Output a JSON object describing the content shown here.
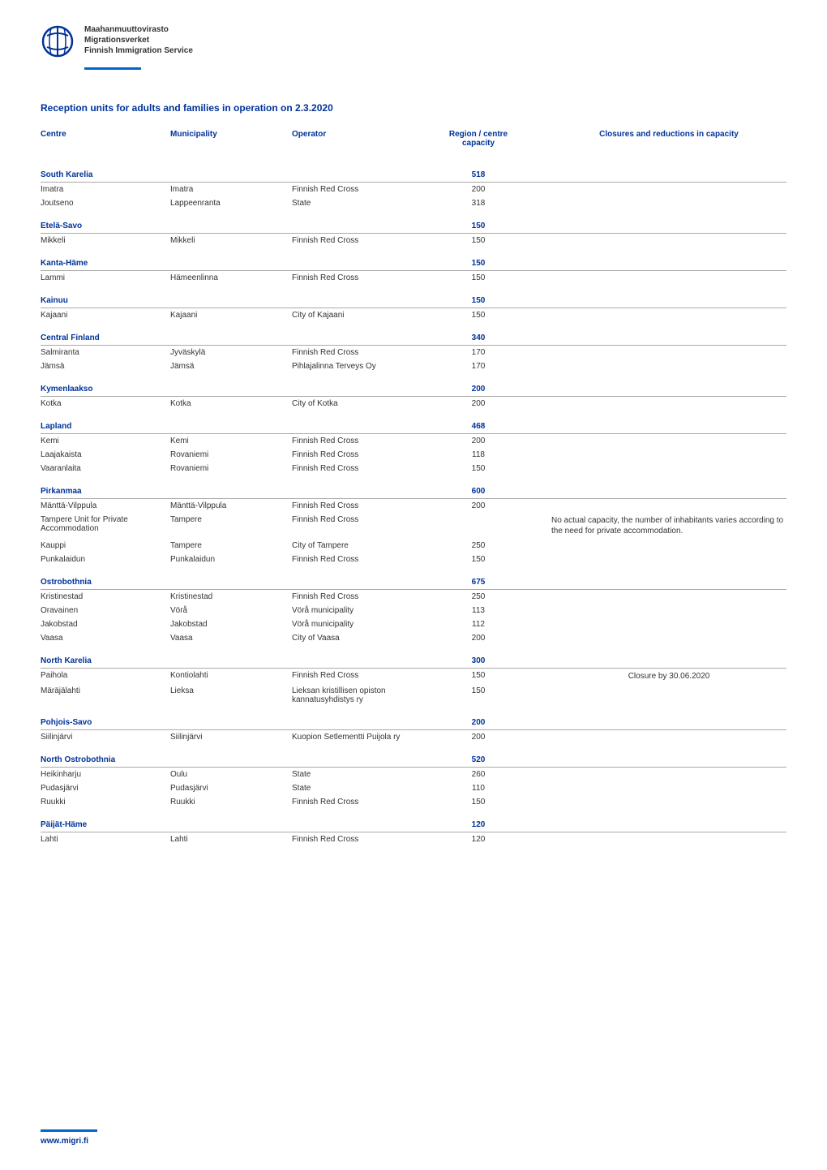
{
  "logo": {
    "line1": "Maahanmuuttovirasto",
    "line2": "Migrationsverket",
    "line3": "Finnish Immigration Service"
  },
  "title": "Reception units for adults and families in operation on 2.3.2020",
  "headers": {
    "centre": "Centre",
    "municipality": "Municipality",
    "operator": "Operator",
    "capacity": "Region / centre capacity",
    "closures": "Closures and reductions in capacity"
  },
  "colors": {
    "primary": "#003399",
    "accent": "#0066cc",
    "text": "#333333",
    "border": "#aaaaaa",
    "background": "#ffffff"
  },
  "regions": [
    {
      "name": "South Karelia",
      "capacity": "518",
      "rows": [
        {
          "centre": "Imatra",
          "municipality": "Imatra",
          "operator": "Finnish Red Cross",
          "capacity": "200",
          "note": ""
        },
        {
          "centre": "Joutseno",
          "municipality": "Lappeenranta",
          "operator": "State",
          "capacity": "318",
          "note": ""
        }
      ]
    },
    {
      "name": "Etelä-Savo",
      "capacity": "150",
      "rows": [
        {
          "centre": "Mikkeli",
          "municipality": "Mikkeli",
          "operator": "Finnish Red Cross",
          "capacity": "150",
          "note": ""
        }
      ]
    },
    {
      "name": "Kanta-Häme",
      "capacity": "150",
      "rows": [
        {
          "centre": "Lammi",
          "municipality": "Hämeenlinna",
          "operator": "Finnish Red Cross",
          "capacity": "150",
          "note": ""
        }
      ]
    },
    {
      "name": "Kainuu",
      "capacity": "150",
      "rows": [
        {
          "centre": "Kajaani",
          "municipality": "Kajaani",
          "operator": "City of Kajaani",
          "capacity": "150",
          "note": ""
        }
      ]
    },
    {
      "name": "Central Finland",
      "capacity": "340",
      "rows": [
        {
          "centre": "Salmiranta",
          "municipality": "Jyväskylä",
          "operator": "Finnish Red Cross",
          "capacity": "170",
          "note": ""
        },
        {
          "centre": "Jämsä",
          "municipality": "Jämsä",
          "operator": "Pihlajalinna Terveys Oy",
          "capacity": "170",
          "note": ""
        }
      ]
    },
    {
      "name": "Kymenlaakso",
      "capacity": "200",
      "rows": [
        {
          "centre": "Kotka",
          "municipality": "Kotka",
          "operator": "City of Kotka",
          "capacity": "200",
          "note": ""
        }
      ]
    },
    {
      "name": "Lapland",
      "capacity": "468",
      "rows": [
        {
          "centre": "Kemi",
          "municipality": "Kemi",
          "operator": "Finnish Red Cross",
          "capacity": "200",
          "note": ""
        },
        {
          "centre": "Laajakaista",
          "municipality": "Rovaniemi",
          "operator": "Finnish Red Cross",
          "capacity": "118",
          "note": ""
        },
        {
          "centre": "Vaaranlaita",
          "municipality": "Rovaniemi",
          "operator": "Finnish Red Cross",
          "capacity": "150",
          "note": ""
        }
      ]
    },
    {
      "name": "Pirkanmaa",
      "capacity": "600",
      "rows": [
        {
          "centre": "Mänttä-Vilppula",
          "municipality": "Mänttä-Vilppula",
          "operator": "Finnish Red Cross",
          "capacity": "200",
          "note": ""
        },
        {
          "centre": "Tampere Unit for Private Accommodation",
          "municipality": "Tampere",
          "operator": "Finnish Red Cross",
          "capacity": "",
          "note": "No actual capacity, the number of inhabitants varies according to the need for private accommodation."
        },
        {
          "centre": "Kauppi",
          "municipality": "Tampere",
          "operator": "City of Tampere",
          "capacity": "250",
          "note": ""
        },
        {
          "centre": "Punkalaidun",
          "municipality": "Punkalaidun",
          "operator": "Finnish Red Cross",
          "capacity": "150",
          "note": ""
        }
      ]
    },
    {
      "name": "Ostrobothnia",
      "capacity": "675",
      "rows": [
        {
          "centre": "Kristinestad",
          "municipality": "Kristinestad",
          "operator": "Finnish Red Cross",
          "capacity": "250",
          "note": ""
        },
        {
          "centre": "Oravainen",
          "municipality": "Vörå",
          "operator": "Vörå municipality",
          "capacity": "113",
          "note": ""
        },
        {
          "centre": "Jakobstad",
          "municipality": "Jakobstad",
          "operator": "Vörå municipality",
          "capacity": "112",
          "note": ""
        },
        {
          "centre": "Vaasa",
          "municipality": "Vaasa",
          "operator": "City of Vaasa",
          "capacity": "200",
          "note": ""
        }
      ]
    },
    {
      "name": "North Karelia",
      "capacity": "300",
      "rows": [
        {
          "centre": "Paihola",
          "municipality": "Kontiolahti",
          "operator": "Finnish Red Cross",
          "capacity": "150",
          "note": "Closure by 30.06.2020"
        },
        {
          "centre": "Märäjälahti",
          "municipality": "Lieksa",
          "operator": "Lieksan kristillisen opiston kannatusyhdistys ry",
          "capacity": "150",
          "note": ""
        }
      ]
    },
    {
      "name": "Pohjois-Savo",
      "capacity": "200",
      "rows": [
        {
          "centre": "Siilinjärvi",
          "municipality": "Siilinjärvi",
          "operator": "Kuopion Setlementti Puijola ry",
          "capacity": "200",
          "note": ""
        }
      ]
    },
    {
      "name": "North Ostrobothnia",
      "capacity": "520",
      "rows": [
        {
          "centre": "Heikinharju",
          "municipality": "Oulu",
          "operator": "State",
          "capacity": "260",
          "note": ""
        },
        {
          "centre": "Pudasjärvi",
          "municipality": "Pudasjärvi",
          "operator": "State",
          "capacity": "110",
          "note": ""
        },
        {
          "centre": "Ruukki",
          "municipality": "Ruukki",
          "operator": "Finnish Red Cross",
          "capacity": "150",
          "note": ""
        }
      ]
    },
    {
      "name": "Päijät-Häme",
      "capacity": "120",
      "rows": [
        {
          "centre": "Lahti",
          "municipality": "Lahti",
          "operator": "Finnish Red Cross",
          "capacity": "120",
          "note": ""
        }
      ]
    }
  ],
  "footer": "www.migri.fi"
}
